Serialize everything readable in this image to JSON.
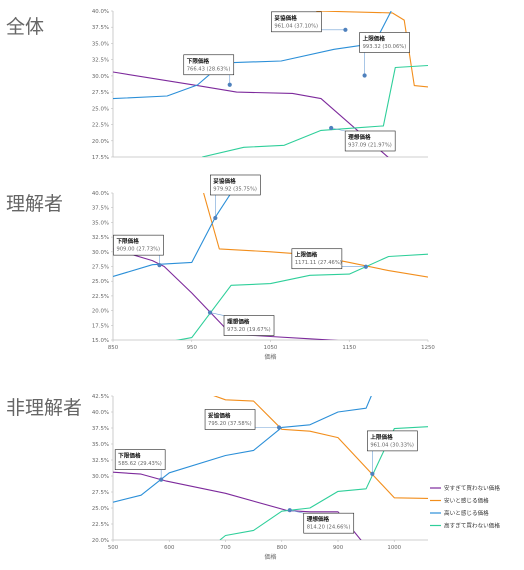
{
  "colors": {
    "purple": "#7d2a9c",
    "orange": "#f28e1c",
    "blue": "#2b8fd8",
    "green": "#2fcf9a",
    "axis": "#bfbfbf",
    "point": "#4f81bd"
  },
  "legend": {
    "items": [
      {
        "label": "安すぎて買わない価格",
        "color": "#7d2a9c"
      },
      {
        "label": "安いと感じる価格",
        "color": "#f28e1c"
      },
      {
        "label": "高いと感じる価格",
        "color": "#2b8fd8"
      },
      {
        "label": "高すぎて買わない価格",
        "color": "#2fcf9a"
      }
    ]
  },
  "chart_data": [
    {
      "type": "line",
      "title": "全体",
      "xlim": [
        570,
        1100
      ],
      "ylim": [
        17.5,
        40.0
      ],
      "yticks": [
        "40.0%",
        "37.5%",
        "35.0%",
        "32.5%",
        "30.0%",
        "27.5%",
        "25.0%",
        "22.5%",
        "20.0%",
        "17.5%"
      ],
      "xticks": [],
      "xlabel": "",
      "series": [
        {
          "key": "purple",
          "x": [
            570,
            712,
            778,
            872,
            920,
            1045
          ],
          "y": [
            30.6,
            28.5,
            27.5,
            27.3,
            26.5,
            16.5
          ]
        },
        {
          "key": "orange",
          "x": [
            912,
            1040,
            1060,
            1077,
            1100
          ],
          "y": [
            40.0,
            39.7,
            38.6,
            28.5,
            28.3
          ]
        },
        {
          "key": "blue",
          "x": [
            570,
            661,
            712,
            755,
            853,
            942,
            1010,
            1038
          ],
          "y": [
            26.5,
            26.9,
            28.6,
            32.0,
            32.3,
            34.1,
            35.0,
            40.0
          ]
        },
        {
          "key": "green",
          "x": [
            720,
            790,
            858,
            920,
            980,
            1025,
            1045,
            1100
          ],
          "y": [
            17.5,
            19.0,
            19.3,
            21.6,
            22.0,
            22.3,
            31.3,
            31.6
          ]
        }
      ],
      "callouts": [
        {
          "title": "下限価格",
          "value": "766.43 (28.63%)",
          "x": 766.43,
          "y": 28.63,
          "box": "left"
        },
        {
          "title": "妥協価格",
          "value": "961.04 (37.10%)",
          "x": 961.04,
          "y": 37.1,
          "box": "upper"
        },
        {
          "title": "上限価格",
          "value": "993.32 (30.06%)",
          "x": 993.32,
          "y": 30.06,
          "box": "right"
        },
        {
          "title": "理想価格",
          "value": "937.09 (21.97%)",
          "x": 937.09,
          "y": 21.97,
          "box": "lower"
        }
      ]
    },
    {
      "type": "line",
      "title": "理解者",
      "xlim": [
        850,
        1250
      ],
      "ylim": [
        15.0,
        40.0
      ],
      "yticks": [
        "40.0%",
        "37.5%",
        "35.0%",
        "32.5%",
        "30.0%",
        "27.5%",
        "25.0%",
        "22.5%",
        "20.0%",
        "17.5%",
        "15.0%"
      ],
      "xticks": [
        "850",
        "950",
        "1050",
        "1150",
        "1250"
      ],
      "xlabel": "価格",
      "series": [
        {
          "key": "purple",
          "x": [
            850,
            900,
            915,
            950,
            1000,
            1050,
            1100,
            1150
          ],
          "y": [
            30.5,
            28.5,
            27.5,
            23.0,
            16.0,
            15.6,
            15.2,
            14.8
          ]
        },
        {
          "key": "orange",
          "x": [
            965,
            985,
            1050,
            1100,
            1150,
            1200,
            1250
          ],
          "y": [
            40.0,
            30.5,
            30.0,
            29.5,
            28.2,
            26.8,
            25.7
          ]
        },
        {
          "key": "blue",
          "x": [
            850,
            900,
            950,
            980,
            1000
          ],
          "y": [
            25.8,
            27.8,
            28.2,
            35.9,
            40.0
          ]
        },
        {
          "key": "green",
          "x": [
            850,
            950,
            1000,
            1050,
            1100,
            1150,
            1200,
            1250
          ],
          "y": [
            13.0,
            15.4,
            24.3,
            24.6,
            26.0,
            26.2,
            29.2,
            29.6
          ]
        }
      ],
      "callouts": [
        {
          "title": "下限価格",
          "value": "909.00 (27.73%)",
          "x": 909.0,
          "y": 27.73,
          "box": "left"
        },
        {
          "title": "妥協価格",
          "value": "979.92 (35.75%)",
          "x": 979.92,
          "y": 35.75,
          "box": "right"
        },
        {
          "title": "上限価格",
          "value": "1171.11 (27.46%)",
          "x": 1171.11,
          "y": 27.46,
          "box": "upper"
        },
        {
          "title": "理想価格",
          "value": "973.20 (19.67%)",
          "x": 973.2,
          "y": 19.67,
          "box": "lower"
        }
      ]
    },
    {
      "type": "line",
      "title": "非理解者",
      "xlim": [
        500,
        1060
      ],
      "ylim": [
        20.0,
        42.5
      ],
      "yticks": [
        "42.5%",
        "40.0%",
        "37.5%",
        "35.0%",
        "32.5%",
        "30.0%",
        "27.5%",
        "25.0%",
        "22.5%",
        "20.0%"
      ],
      "xticks": [
        "500",
        "600",
        "700",
        "800",
        "900",
        "1000"
      ],
      "xlabel": "価格",
      "series": [
        {
          "key": "purple",
          "x": [
            500,
            550,
            595,
            700,
            810,
            850,
            900,
            950
          ],
          "y": [
            30.6,
            30.3,
            29.2,
            27.3,
            24.6,
            24.4,
            24.4,
            19.0
          ]
        },
        {
          "key": "orange",
          "x": [
            665,
            700,
            750,
            800,
            850,
            900,
            1000,
            1060
          ],
          "y": [
            43.0,
            41.9,
            41.7,
            37.3,
            37.0,
            36.0,
            26.6,
            26.5
          ]
        },
        {
          "key": "blue",
          "x": [
            500,
            550,
            600,
            700,
            750,
            800,
            850,
            900,
            950,
            960
          ],
          "y": [
            25.9,
            27.0,
            30.5,
            33.2,
            34.0,
            37.6,
            38.0,
            40.0,
            40.6,
            42.7
          ]
        },
        {
          "key": "green",
          "x": [
            690,
            700,
            750,
            800,
            850,
            900,
            950,
            1000,
            1060
          ],
          "y": [
            20.0,
            20.7,
            21.5,
            24.5,
            25.0,
            27.6,
            28.0,
            37.4,
            37.7
          ]
        }
      ],
      "callouts": [
        {
          "title": "下限価格",
          "value": "585.62 (29.43%)",
          "x": 585.62,
          "y": 29.43,
          "box": "left"
        },
        {
          "title": "妥協価格",
          "value": "795.20 (37.58%)",
          "x": 795.2,
          "y": 37.58,
          "box": "upper"
        },
        {
          "title": "上限価格",
          "value": "961.04 (30.33%)",
          "x": 961.04,
          "y": 30.33,
          "box": "right"
        },
        {
          "title": "理想価格",
          "value": "814.20 (24.66%)",
          "x": 814.2,
          "y": 24.66,
          "box": "lower"
        }
      ]
    }
  ]
}
